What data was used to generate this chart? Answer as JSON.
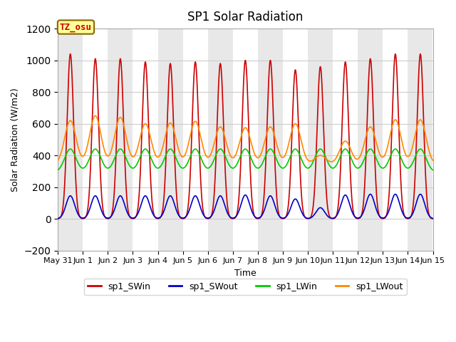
{
  "title": "SP1 Solar Radiation",
  "xlabel": "Time",
  "ylabel": "Solar Radiation (W/m2)",
  "ylim": [
    -200,
    1200
  ],
  "xlim_days": [
    0,
    15
  ],
  "yticks": [
    -200,
    0,
    200,
    400,
    600,
    800,
    1000,
    1200
  ],
  "xtick_labels": [
    "May 31",
    "Jun 1",
    "Jun 2",
    "Jun 3",
    "Jun 4",
    "Jun 5",
    "Jun 6",
    "Jun 7",
    "Jun 8",
    "Jun 9",
    "Jun 10",
    "Jun 11",
    "Jun 12",
    "Jun 13",
    "Jun 14",
    "Jun 15"
  ],
  "xtick_positions": [
    0,
    1,
    2,
    3,
    4,
    5,
    6,
    7,
    8,
    9,
    10,
    11,
    12,
    13,
    14,
    15
  ],
  "colors": {
    "SWin": "#cc0000",
    "SWout": "#0000cc",
    "LWin": "#00cc00",
    "LWout": "#ff8800"
  },
  "legend_labels": [
    "sp1_SWin",
    "sp1_SWout",
    "sp1_LWin",
    "sp1_LWout"
  ],
  "tz_label": "TZ_osu",
  "grid_color": "#cccccc",
  "band_colors": [
    "#e8e8e8",
    "#ffffff"
  ],
  "SWin_peaks": [
    1040,
    1010,
    1010,
    990,
    980,
    990,
    980,
    1000,
    1000,
    940,
    960,
    990,
    1010,
    1040,
    1040
  ],
  "SWout_peaks": [
    145,
    145,
    145,
    145,
    145,
    145,
    145,
    150,
    145,
    125,
    70,
    150,
    155,
    155,
    155
  ],
  "LWin_base": 295,
  "LWin_peak": 440,
  "LWout_base": 345,
  "LWout_peak_vals": [
    620,
    650,
    640,
    600,
    605,
    615,
    580,
    575,
    580,
    600,
    400,
    490,
    580,
    625,
    625
  ]
}
